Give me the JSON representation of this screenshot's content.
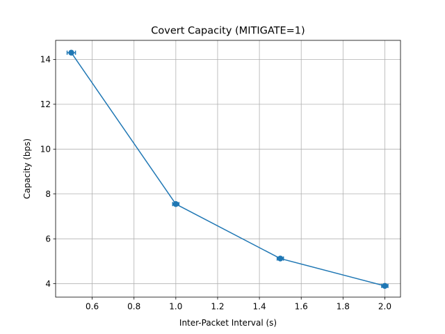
{
  "chart_data": {
    "type": "line",
    "title": "Covert Capacity (MITIGATE=1)",
    "xlabel": "Inter-Packet Interval (s)",
    "ylabel": "Capacity (bps)",
    "xlim": [
      0.425,
      2.075
    ],
    "ylim": [
      3.4,
      14.85
    ],
    "xticks": [
      0.6,
      0.8,
      1.0,
      1.2,
      1.4,
      1.6,
      1.8,
      2.0
    ],
    "xtick_labels": [
      "0.6",
      "0.8",
      "1.0",
      "1.2",
      "1.4",
      "1.6",
      "1.8",
      "2.0"
    ],
    "yticks": [
      4,
      6,
      8,
      10,
      12,
      14
    ],
    "ytick_labels": [
      "4",
      "6",
      "8",
      "10",
      "12",
      "14"
    ],
    "grid": true,
    "series": [
      {
        "x": [
          0.5,
          1.0,
          1.5,
          2.0
        ],
        "y": [
          14.3,
          7.55,
          5.12,
          3.9
        ],
        "xerr": [
          0.02,
          0.015,
          0.015,
          0.015
        ],
        "color": "#1f77b4",
        "marker": "circle"
      }
    ]
  }
}
